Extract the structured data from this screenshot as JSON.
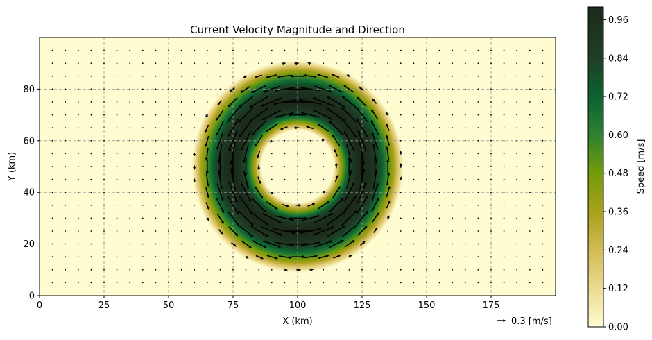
{
  "chart_data": {
    "type": "heatmap",
    "title": "Current Velocity Magnitude and Direction",
    "xlabel": "X (km)",
    "ylabel": "Y (km)",
    "xlim": [
      0,
      200
    ],
    "ylim": [
      0,
      100
    ],
    "xticks": [
      0,
      25,
      50,
      75,
      100,
      125,
      150,
      175
    ],
    "yticks": [
      0,
      20,
      40,
      60,
      80
    ],
    "xtick_labels": [
      "0",
      "25",
      "50",
      "75",
      "100",
      "125",
      "150",
      "175"
    ],
    "ytick_labels": [
      "0",
      "20",
      "40",
      "60",
      "80"
    ],
    "grid": true,
    "colorbar": {
      "label": "Speed [m/s]",
      "range": [
        0,
        1.0
      ],
      "ticks": [
        0.0,
        0.12,
        0.24,
        0.36,
        0.48,
        0.6,
        0.72,
        0.84,
        0.96
      ],
      "tick_labels": [
        "0.00",
        "0.12",
        "0.24",
        "0.36",
        "0.48",
        "0.60",
        "0.72",
        "0.84",
        "0.96"
      ],
      "colors": [
        "#fffcd2",
        "#ebdb91",
        "#d2bb55",
        "#a7a01b",
        "#749c0a",
        "#2e8230",
        "#0b6230",
        "#1f3f25",
        "#1c2a1c"
      ]
    },
    "field": {
      "description": "counter-clockwise ring vortex",
      "center": [
        100,
        50
      ],
      "ring_inner_radius_km": 14,
      "ring_peak_radius_km": 25,
      "ring_outer_radius_km": 41,
      "max_speed": 1.0,
      "arrow_grid_start": [
        5,
        5
      ],
      "arrow_grid_step": 5
    },
    "quiver_key": {
      "value": 0.3,
      "label": "0.3 [m/s]"
    }
  }
}
